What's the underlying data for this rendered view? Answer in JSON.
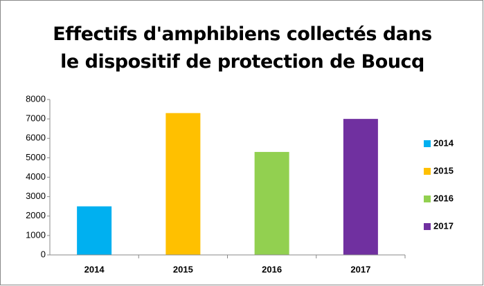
{
  "chart_data": {
    "type": "bar",
    "title": "Effectifs d'amphibiens collectés dans le dispositif de protection de Boucq",
    "categories": [
      "2014",
      "2015",
      "2016",
      "2017"
    ],
    "values": [
      2500,
      7300,
      5300,
      7000
    ],
    "colors": [
      "#00b0f0",
      "#ffc000",
      "#92d050",
      "#7030a0"
    ],
    "ylim": [
      0,
      8000
    ],
    "yticks": [
      0,
      1000,
      2000,
      3000,
      4000,
      5000,
      6000,
      7000,
      8000
    ],
    "grid": false,
    "legend": "right"
  }
}
